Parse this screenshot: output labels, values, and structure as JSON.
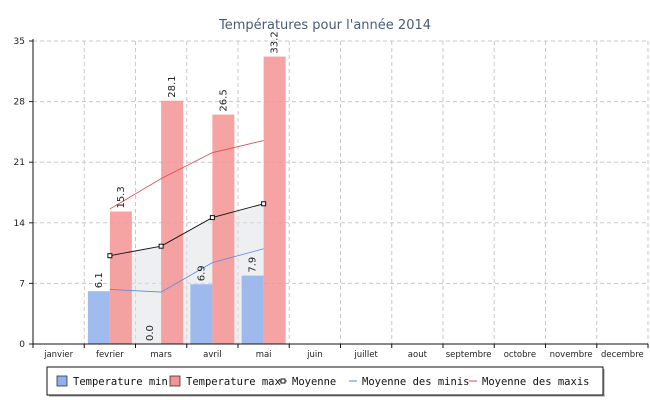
{
  "chart_data": {
    "type": "bar",
    "title": "Températures pour l'année 2014",
    "categories": [
      "janvier",
      "fevrier",
      "mars",
      "avril",
      "mai",
      "juin",
      "juillet",
      "aout",
      "septembre",
      "octobre",
      "novembre",
      "decembre"
    ],
    "ylim": [
      0,
      35
    ],
    "yticks": [
      0,
      7,
      14,
      21,
      28,
      35
    ],
    "grid": true,
    "bar_series": [
      {
        "name": "Temperature min",
        "color": "#8fb0ec",
        "values": [
          null,
          6.1,
          0.0,
          6.9,
          7.9,
          null,
          null,
          null,
          null,
          null,
          null,
          null
        ],
        "labels": [
          "",
          "6.1",
          "0.0",
          "6.9",
          "7.9",
          "",
          "",
          "",
          "",
          "",
          "",
          ""
        ]
      },
      {
        "name": "Temperature max",
        "color": "#f59393",
        "values": [
          null,
          15.3,
          28.1,
          26.5,
          33.2,
          null,
          null,
          null,
          null,
          null,
          null,
          null
        ],
        "labels": [
          "",
          "15.3",
          "28.1",
          "26.5",
          "33.2",
          "",
          "",
          "",
          "",
          "",
          "",
          ""
        ]
      }
    ],
    "line_series": [
      {
        "name": "Moyenne",
        "color": "#111111",
        "marker": "square",
        "fill": "#dfe1e6",
        "values": [
          null,
          10.2,
          11.3,
          14.6,
          16.2,
          null,
          null,
          null,
          null,
          null,
          null,
          null
        ]
      },
      {
        "name": "Moyenne des minis",
        "color": "#5b86e0",
        "marker": "none",
        "values": [
          null,
          6.3,
          6.0,
          9.4,
          11.0,
          null,
          null,
          null,
          null,
          null,
          null,
          null
        ]
      },
      {
        "name": "Moyenne des maxis",
        "color": "#e04a4a",
        "marker": "none",
        "values": [
          null,
          15.6,
          19.1,
          22.1,
          23.5,
          null,
          null,
          null,
          null,
          null,
          null,
          null
        ]
      }
    ],
    "legend": {
      "position": "bottom",
      "items": [
        {
          "label": "Temperature min",
          "kind": "box",
          "color": "#8fb0ec"
        },
        {
          "label": "Temperature max",
          "kind": "box",
          "color": "#f59393"
        },
        {
          "label": "Moyenne",
          "kind": "marker-line",
          "color": "#111111"
        },
        {
          "label": "Moyenne des minis",
          "kind": "line",
          "color": "#5b86e0"
        },
        {
          "label": "Moyenne des maxis",
          "kind": "line",
          "color": "#e04a4a"
        }
      ]
    }
  }
}
